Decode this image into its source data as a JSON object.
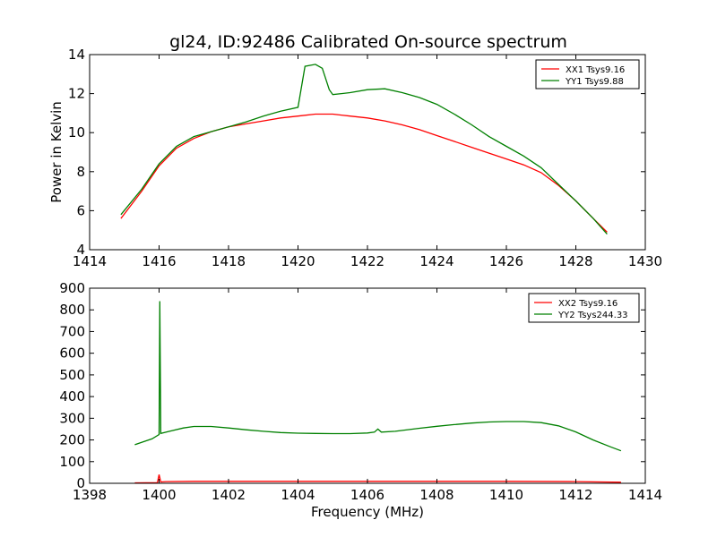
{
  "figure": {
    "title": "gl24, ID:92486 Calibrated On-source spectrum",
    "shared_xlabel": "Frequency (MHz)"
  },
  "chart_data": [
    {
      "type": "line",
      "ylabel": "Power in Kelvin",
      "xlim": [
        1414,
        1430
      ],
      "ylim": [
        4,
        14
      ],
      "xticks": [
        1414,
        1416,
        1418,
        1420,
        1422,
        1424,
        1426,
        1428,
        1430
      ],
      "yticks": [
        4,
        6,
        8,
        10,
        12,
        14
      ],
      "grid": false,
      "legend_placement": "top-right",
      "series": [
        {
          "name": "XX1 Tsys9.16",
          "color": "#ff0000",
          "x": [
            1414.9,
            1415.5,
            1416.0,
            1416.5,
            1417.0,
            1417.5,
            1418.0,
            1418.5,
            1419.0,
            1419.5,
            1420.0,
            1420.5,
            1421.0,
            1421.5,
            1422.0,
            1422.5,
            1423.0,
            1423.5,
            1424.0,
            1424.5,
            1425.0,
            1425.5,
            1426.0,
            1426.5,
            1427.0,
            1427.5,
            1428.0,
            1428.5,
            1428.9
          ],
          "y": [
            5.6,
            7.0,
            8.3,
            9.2,
            9.7,
            10.05,
            10.3,
            10.45,
            10.6,
            10.75,
            10.85,
            10.95,
            10.95,
            10.85,
            10.75,
            10.6,
            10.4,
            10.15,
            9.85,
            9.55,
            9.25,
            8.95,
            8.65,
            8.35,
            7.95,
            7.3,
            6.5,
            5.6,
            4.9
          ]
        },
        {
          "name": "YY1 Tsys9.88",
          "color": "#008000",
          "x": [
            1414.9,
            1415.5,
            1416.0,
            1416.5,
            1417.0,
            1417.5,
            1418.0,
            1418.5,
            1419.0,
            1419.5,
            1420.0,
            1420.2,
            1420.5,
            1420.7,
            1420.9,
            1421.0,
            1421.5,
            1422.0,
            1422.5,
            1423.0,
            1423.5,
            1424.0,
            1424.5,
            1425.0,
            1425.5,
            1426.0,
            1426.5,
            1427.0,
            1427.5,
            1428.0,
            1428.5,
            1428.9
          ],
          "y": [
            5.8,
            7.1,
            8.4,
            9.3,
            9.8,
            10.05,
            10.3,
            10.55,
            10.85,
            11.1,
            11.3,
            13.4,
            13.5,
            13.3,
            12.2,
            11.95,
            12.05,
            12.2,
            12.25,
            12.05,
            11.8,
            11.45,
            10.95,
            10.4,
            9.8,
            9.3,
            8.8,
            8.2,
            7.35,
            6.5,
            5.6,
            4.8
          ]
        }
      ]
    },
    {
      "type": "line",
      "xlabel": "Frequency (MHz)",
      "xlim": [
        1398,
        1414
      ],
      "ylim": [
        0,
        900
      ],
      "xticks": [
        1398,
        1400,
        1402,
        1404,
        1406,
        1408,
        1410,
        1412,
        1414
      ],
      "yticks": [
        0,
        100,
        200,
        300,
        400,
        500,
        600,
        700,
        800,
        900
      ],
      "grid": false,
      "legend_placement": "top-right",
      "series": [
        {
          "name": "XX2 Tsys9.16",
          "color": "#ff0000",
          "x": [
            1399.3,
            1399.95,
            1400.0,
            1400.05,
            1400.2,
            1401.0,
            1402.0,
            1404.0,
            1406.0,
            1408.0,
            1410.0,
            1412.0,
            1413.3
          ],
          "y": [
            2,
            3,
            40,
            6,
            8,
            9,
            9,
            9,
            9,
            9,
            9,
            8,
            5
          ]
        },
        {
          "name": "YY2 Tsys244.33",
          "color": "#008000",
          "x": [
            1399.3,
            1399.8,
            1400.0,
            1400.02,
            1400.05,
            1400.3,
            1400.7,
            1401.0,
            1401.5,
            1402.0,
            1402.5,
            1403.0,
            1403.5,
            1404.0,
            1404.5,
            1405.0,
            1405.5,
            1406.0,
            1406.2,
            1406.3,
            1406.4,
            1406.8,
            1407.5,
            1408.0,
            1408.5,
            1409.0,
            1409.5,
            1410.0,
            1410.5,
            1411.0,
            1411.5,
            1412.0,
            1412.5,
            1413.0,
            1413.3
          ],
          "y": [
            178,
            205,
            225,
            840,
            230,
            240,
            255,
            262,
            262,
            255,
            247,
            240,
            234,
            231,
            230,
            229,
            229,
            232,
            236,
            250,
            236,
            240,
            254,
            263,
            271,
            278,
            283,
            285,
            285,
            280,
            265,
            237,
            200,
            168,
            150
          ]
        }
      ]
    }
  ]
}
